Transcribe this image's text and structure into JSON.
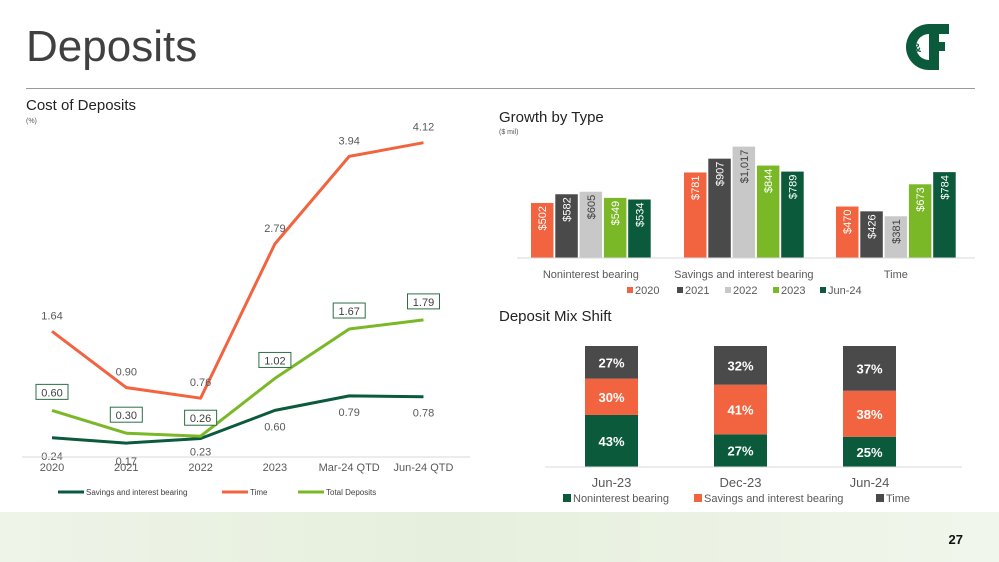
{
  "page": {
    "title": "Deposits",
    "page_number": "27"
  },
  "colors": {
    "time": "#f26440",
    "savings": "#0b5a3c",
    "total": "#7ab828",
    "y2021": "#4a4a4a",
    "y2022": "#c8c8c8",
    "jun24": "#0b5a3c",
    "y2023": "#7ab828",
    "y2020": "#f26440",
    "time_mix": "#4a4a4a"
  },
  "chart_data": [
    {
      "type": "line",
      "title": "Cost of Deposits",
      "subtitle": "(%)",
      "categories": [
        "2020",
        "2021",
        "2022",
        "2023",
        "Mar-24 QTD",
        "Jun-24 QTD"
      ],
      "series": [
        {
          "name": "Savings and interest bearing",
          "values": [
            0.24,
            0.17,
            0.23,
            0.6,
            0.79,
            0.78
          ]
        },
        {
          "name": "Time",
          "values": [
            1.64,
            0.9,
            0.76,
            2.79,
            3.94,
            4.12
          ]
        },
        {
          "name": "Total Deposits",
          "values": [
            0.6,
            0.3,
            0.26,
            1.02,
            1.67,
            1.79
          ]
        }
      ],
      "ylim": [
        0,
        4.4
      ],
      "legend": "bottom"
    },
    {
      "type": "bar",
      "title": "Growth by Type",
      "subtitle": "($ mil)",
      "categories": [
        "Noninterest bearing",
        "Savings and interest bearing",
        "Time"
      ],
      "series": [
        {
          "name": "2020",
          "values": [
            502,
            781,
            470
          ]
        },
        {
          "name": "2021",
          "values": [
            582,
            907,
            426
          ]
        },
        {
          "name": "2022",
          "values": [
            605,
            1017,
            381
          ]
        },
        {
          "name": "2023",
          "values": [
            549,
            844,
            673
          ]
        },
        {
          "name": "Jun-24",
          "values": [
            534,
            789,
            784
          ]
        }
      ],
      "labels": [
        [
          "$502",
          "$582",
          "$605",
          "$549",
          "$534"
        ],
        [
          "$781",
          "$907",
          "$1,017",
          "$844",
          "$789"
        ],
        [
          "$470",
          "$426",
          "$381",
          "$673",
          "$784"
        ]
      ],
      "ylim": [
        0,
        1050
      ],
      "legend": "bottom"
    },
    {
      "type": "bar",
      "title": "Deposit Mix Shift",
      "stacked": true,
      "categories": [
        "Jun-23",
        "Dec-23",
        "Jun-24"
      ],
      "series": [
        {
          "name": "Noninterest bearing",
          "values": [
            43,
            27,
            25
          ]
        },
        {
          "name": "Savings and interest bearing",
          "values": [
            30,
            41,
            38
          ]
        },
        {
          "name": "Time",
          "values": [
            27,
            32,
            37
          ]
        }
      ],
      "labels": [
        [
          "43%",
          "27%",
          "25%"
        ],
        [
          "30%",
          "41%",
          "38%"
        ],
        [
          "27%",
          "32%",
          "37%"
        ]
      ],
      "ylim": [
        0,
        100
      ],
      "legend": "bottom"
    }
  ]
}
